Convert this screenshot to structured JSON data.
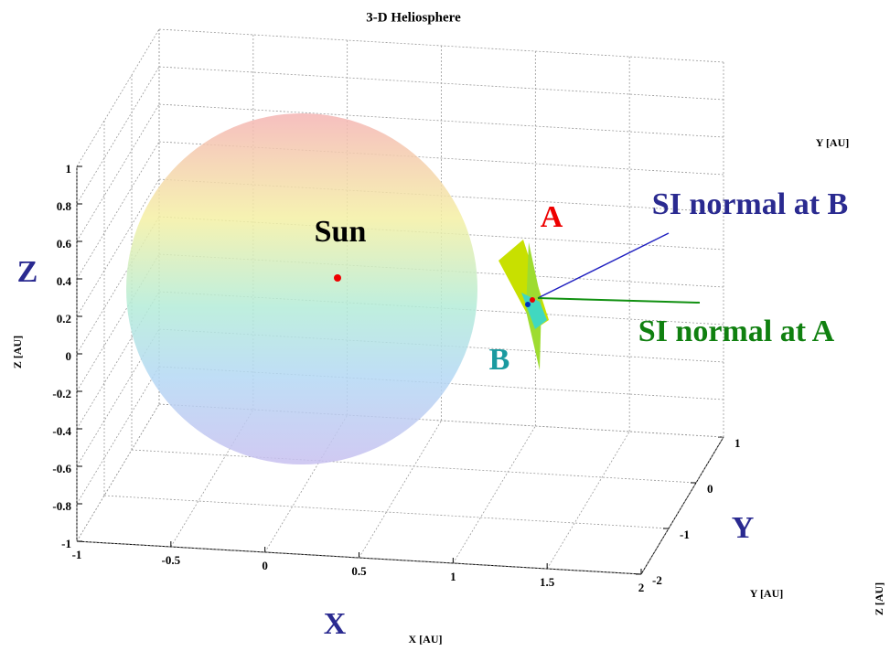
{
  "chart_data": {
    "type": "surface3d",
    "title": "3-D Heliosphere",
    "xlabel": "X   [AU]",
    "ylabel": "Y   [AU]",
    "zlabel": "Z   [AU]",
    "ylabel_top": "Y   [AU]",
    "zlabel_right": "Z   [AU]",
    "xlim": [
      -1,
      2
    ],
    "ylim": [
      -2,
      1
    ],
    "zlim": [
      -1,
      1
    ],
    "xticks": [
      -1,
      -0.5,
      0,
      0.5,
      1,
      1.5,
      2
    ],
    "yticks": [
      -2,
      -1,
      0,
      1
    ],
    "zticks": [
      -1,
      -0.8,
      -0.6,
      -0.4,
      -0.2,
      0,
      0.2,
      0.4,
      0.6,
      0.8,
      1
    ],
    "grid": true,
    "annotations": {
      "sun": "Sun",
      "a": "A",
      "b": "B",
      "normal_b": "SI normal at B",
      "normal_a": "SI normal at A",
      "big_x": "X",
      "big_y": "Y",
      "big_z": "Z"
    }
  }
}
